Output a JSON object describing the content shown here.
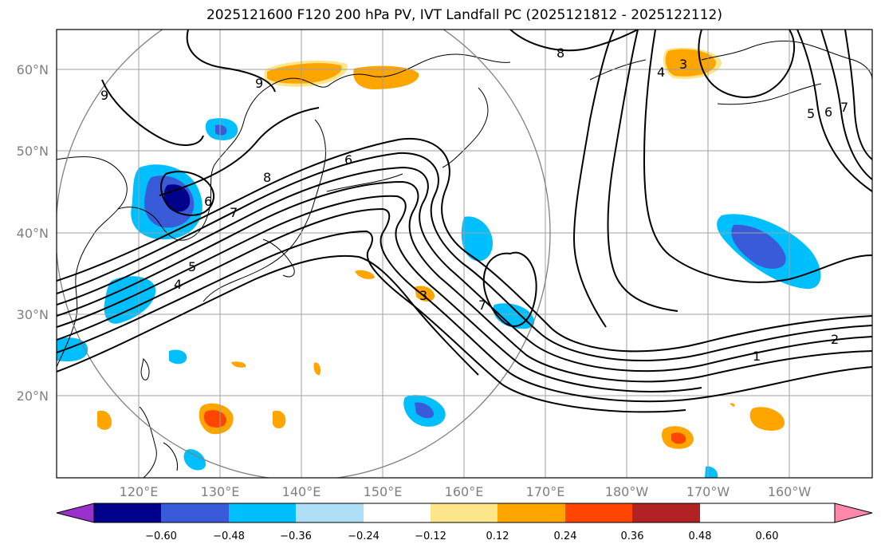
{
  "map": {
    "title": "2025121600 F120 200 hPa PV, IVT Landfall PC (2025121812 - 2025122112)",
    "longitude_labels": [
      "120°E",
      "130°E",
      "140°E",
      "150°E",
      "160°E",
      "170°E",
      "180°W",
      "170°W",
      "160°W"
    ],
    "latitude_labels": [
      "60°N",
      "50°N",
      "40°N",
      "30°N",
      "20°N"
    ],
    "contour_labels": [
      "9",
      "9",
      "8",
      "8",
      "7",
      "6",
      "6",
      "5",
      "4",
      "3",
      "7",
      "7",
      "6",
      "5",
      "3",
      "2",
      "1",
      "4"
    ],
    "colors": {
      "neg_purple": "#9932cc",
      "neg_navy": "#00008b",
      "neg_royal": "#3a5bd9",
      "neg_deepsky": "#00bfff",
      "neg_light": "#aedff7",
      "pos_khaki": "#fde68a",
      "pos_orange": "#ffa500",
      "pos_orangered": "#ff4500",
      "pos_firebrick": "#b22222",
      "pos_pink": "#ff88aa"
    }
  },
  "colorbar": {
    "tick_labels": [
      "−0.60",
      "−0.48",
      "−0.36",
      "−0.24",
      "−0.12",
      "0.12",
      "0.24",
      "0.36",
      "0.48",
      "0.60"
    ],
    "bins": [
      "#9932cc",
      "#00008b",
      "#3a5bd9",
      "#00bfff",
      "#aedff7",
      "#ffffff",
      "#fde68a",
      "#ffa500",
      "#ff4500",
      "#b22222",
      "#ff88aa"
    ]
  }
}
